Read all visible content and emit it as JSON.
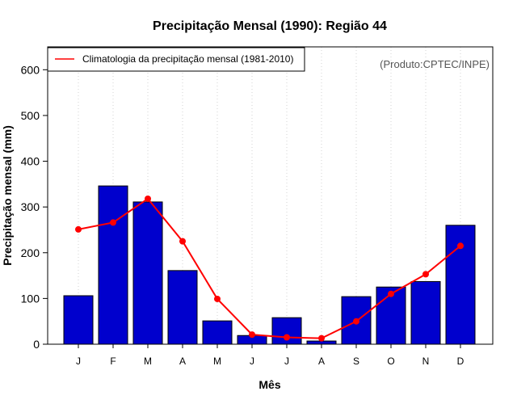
{
  "chart_data": {
    "type": "bar",
    "title": "Precipitação Mensal (1990): Região 44",
    "xlabel": "Mês",
    "ylabel": "Precipitação mensal (mm)",
    "ylim": [
      0,
      650
    ],
    "yticks": [
      0,
      100,
      200,
      300,
      400,
      500,
      600
    ],
    "categories": [
      "J",
      "F",
      "M",
      "A",
      "M",
      "J",
      "J",
      "A",
      "S",
      "O",
      "N",
      "D"
    ],
    "series": [
      {
        "name": "Precipitação mensal (1990)",
        "type": "bar",
        "color": "#0000cd",
        "values": [
          106,
          346,
          311,
          161,
          51,
          19,
          58,
          7,
          104,
          125,
          137,
          260
        ]
      },
      {
        "name": "Climatologia da precipitação mensal (1981-2010)",
        "type": "line",
        "color": "#ff0000",
        "values": [
          251,
          266,
          318,
          225,
          99,
          21,
          15,
          13,
          50,
          110,
          153,
          215
        ]
      }
    ],
    "legend": {
      "position": "top-left",
      "entries": [
        "Climatologia da precipitação mensal (1981-2010)"
      ]
    },
    "grid": "vertical dotted",
    "credit": "(Produto:CPTEC/INPE)"
  }
}
